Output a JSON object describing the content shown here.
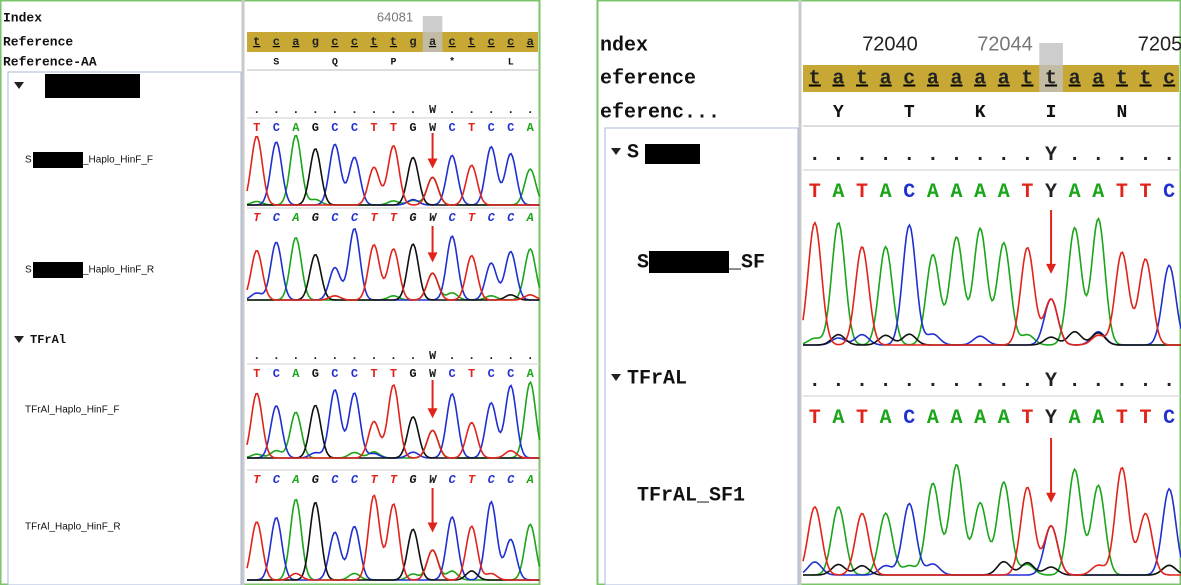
{
  "panels": [
    {
      "header": {
        "index_label": "Index",
        "reference_label": "Reference",
        "aa_label": "Reference-AA",
        "index_numbers": [
          "64081"
        ],
        "reference": "tcagccttgactcca",
        "aa": [
          "S",
          "Q",
          "P",
          "*",
          "L"
        ]
      },
      "groups": [
        {
          "name": null,
          "consensus": ".........W.....",
          "reads": [
            {
              "label": [
                "S",
                "_Haplo_HinF_F"
              ],
              "bases": "TCAGCCTTGWCTCCA"
            },
            {
              "label": [
                "S",
                "_Haplo_HinF_R"
              ],
              "bases": "TCAGCCTTGWCTCCA"
            }
          ]
        },
        {
          "name": "TFrAl",
          "consensus": ".........W.....",
          "reads": [
            {
              "label": [
                "TFrAl_Haplo_HinF_F"
              ],
              "bases": "TCAGCCTTGWCTCCA"
            },
            {
              "label": [
                "TFrAl_Haplo_HinF_R"
              ],
              "bases": "TCAGCCTTGWCTCCA"
            }
          ]
        }
      ]
    },
    {
      "header": {
        "index_label": "ndex",
        "reference_label": "eference",
        "aa_label": "eferenc...",
        "index_numbers": [
          "72040",
          "72044",
          "7205"
        ],
        "reference": "tatacaaaattaattc",
        "aa": [
          "Y",
          "T",
          "K",
          "I",
          "N"
        ]
      },
      "groups": [
        {
          "name": "S",
          "consensus": "..........Y.....",
          "reads": [
            {
              "label": [
                "S",
                "_SF"
              ],
              "bases": "TATACAAAATYAATTC"
            }
          ]
        },
        {
          "name": "TFrAL",
          "consensus": "..........Y.....",
          "reads": [
            {
              "label": [
                "TFrAL_SF1"
              ],
              "bases": "TATACAAAATYAATTC"
            }
          ]
        }
      ]
    }
  ]
}
